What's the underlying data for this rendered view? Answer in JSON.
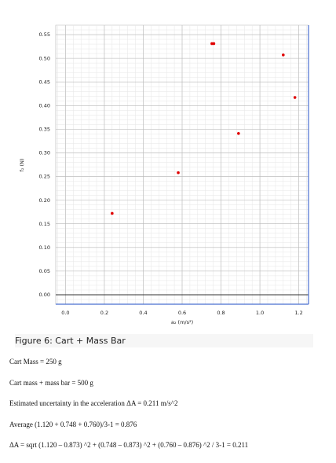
{
  "chart_data": {
    "type": "scatter",
    "title": "",
    "xlabel": "a₂ (m/s²)",
    "ylabel": "f₂ (N)",
    "xlim": [
      -0.05,
      1.25
    ],
    "ylim": [
      -0.02,
      0.57
    ],
    "xticks": [
      "0.0",
      "0.2",
      "0.4",
      "0.6",
      "0.8",
      "1.0",
      "1.2"
    ],
    "xtick_values": [
      0.0,
      0.2,
      0.4,
      0.6,
      0.8,
      1.0,
      1.2
    ],
    "yticks": [
      "0.00",
      "0.05",
      "0.10",
      "0.15",
      "0.20",
      "0.25",
      "0.30",
      "0.35",
      "0.40",
      "0.45",
      "0.50",
      "0.55"
    ],
    "ytick_values": [
      0.0,
      0.05,
      0.1,
      0.15,
      0.2,
      0.25,
      0.3,
      0.35,
      0.4,
      0.45,
      0.5,
      0.55
    ],
    "grid": true,
    "series": [
      {
        "color": "#e00000",
        "points": [
          {
            "x": 0.24,
            "y": 0.172
          },
          {
            "x": 0.58,
            "y": 0.258
          },
          {
            "x": 0.753,
            "y": 0.531
          },
          {
            "x": 0.763,
            "y": 0.531
          },
          {
            "x": 0.89,
            "y": 0.341
          },
          {
            "x": 1.12,
            "y": 0.507
          },
          {
            "x": 1.18,
            "y": 0.417
          }
        ]
      }
    ]
  },
  "caption": "Figure 6: Cart + Mass Bar",
  "notes": [
    "Cart Mass = 250 g",
    "Cart mass + mass bar = 500 g",
    "Estimated uncertainty in the acceleration ΔA = 0.211 m/s^2",
    "Average (1.120 + 0.748 + 0.760)/3-1 = 0.876",
    "ΔA = sqrt (1.120 – 0.873) ^2 + (0.748 – 0.873) ^2 + (0.760 – 0.876) ^2 / 3-1 = 0.211"
  ]
}
